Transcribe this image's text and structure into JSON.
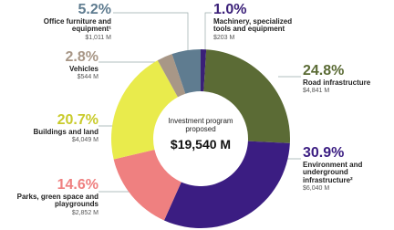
{
  "chart_data": {
    "type": "pie",
    "donut": true,
    "center_title": "Investment program proposed",
    "center_value": "$19,540 M",
    "categories": [
      "Machinery, specialized tools and equipment",
      "Road infrastructure",
      "Environment and underground infrastructure²",
      "Parks, green space and playgrounds",
      "Buildings and land",
      "Vehicles",
      "Office furniture and equipment¹"
    ],
    "values": [
      1.0,
      24.8,
      30.9,
      14.6,
      20.7,
      2.8,
      5.2
    ],
    "value_labels": [
      "1.0%",
      "24.8%",
      "30.9%",
      "14.6%",
      "20.7%",
      "2.8%",
      "5.2%"
    ],
    "amounts": [
      "$203 M",
      "$4,841 M",
      "$6,040 M",
      "$2,852 M",
      "$4,049 M",
      "$544 M",
      "$1,011 M"
    ],
    "colors": [
      "#3a1f78",
      "#5b6b35",
      "#3b1d82",
      "#ef8080",
      "#e9eb4c",
      "#a89787",
      "#5f7c90"
    ]
  }
}
